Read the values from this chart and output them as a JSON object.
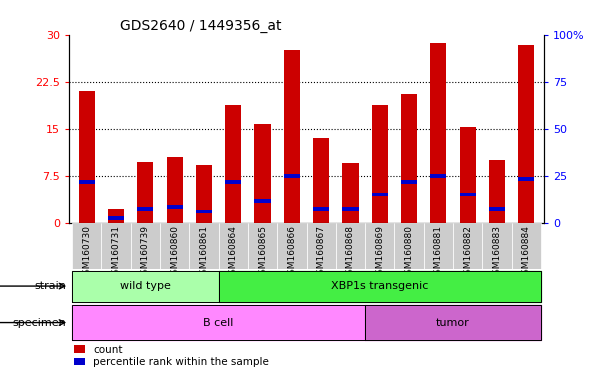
{
  "title": "GDS2640 / 1449356_at",
  "samples": [
    "GSM160730",
    "GSM160731",
    "GSM160739",
    "GSM160860",
    "GSM160861",
    "GSM160864",
    "GSM160865",
    "GSM160866",
    "GSM160867",
    "GSM160868",
    "GSM160869",
    "GSM160880",
    "GSM160881",
    "GSM160882",
    "GSM160883",
    "GSM160884"
  ],
  "count_values": [
    21.0,
    2.2,
    9.7,
    10.5,
    9.2,
    18.7,
    15.7,
    27.5,
    13.5,
    9.5,
    18.7,
    20.5,
    28.7,
    15.2,
    10.0,
    28.3
  ],
  "percentile_values": [
    6.5,
    0.7,
    2.2,
    2.5,
    1.8,
    6.5,
    3.5,
    7.5,
    2.2,
    2.2,
    4.5,
    6.5,
    7.5,
    4.5,
    2.2,
    7.0
  ],
  "strain_groups": [
    {
      "label": "wild type",
      "start": 0,
      "end": 4,
      "color": "#aaffaa"
    },
    {
      "label": "XBP1s transgenic",
      "start": 5,
      "end": 15,
      "color": "#44ee44"
    }
  ],
  "specimen_groups": [
    {
      "label": "B cell",
      "start": 0,
      "end": 9,
      "color": "#ff88ff"
    },
    {
      "label": "tumor",
      "start": 10,
      "end": 15,
      "color": "#cc66cc"
    }
  ],
  "bar_color_red": "#cc0000",
  "bar_color_blue": "#0000cc",
  "bar_width": 0.55,
  "ylim_left": [
    0,
    30
  ],
  "ylim_right": [
    0,
    100
  ],
  "yticks_left": [
    0,
    7.5,
    15,
    22.5,
    30
  ],
  "yticks_right": [
    0,
    25,
    50,
    75,
    100
  ],
  "xtick_bg_color": "#cccccc",
  "strain_color_light": "#aaffaa",
  "strain_color_dark": "#44ee44",
  "specimen_color_light": "#ff88ff",
  "specimen_color_dark": "#cc66cc"
}
